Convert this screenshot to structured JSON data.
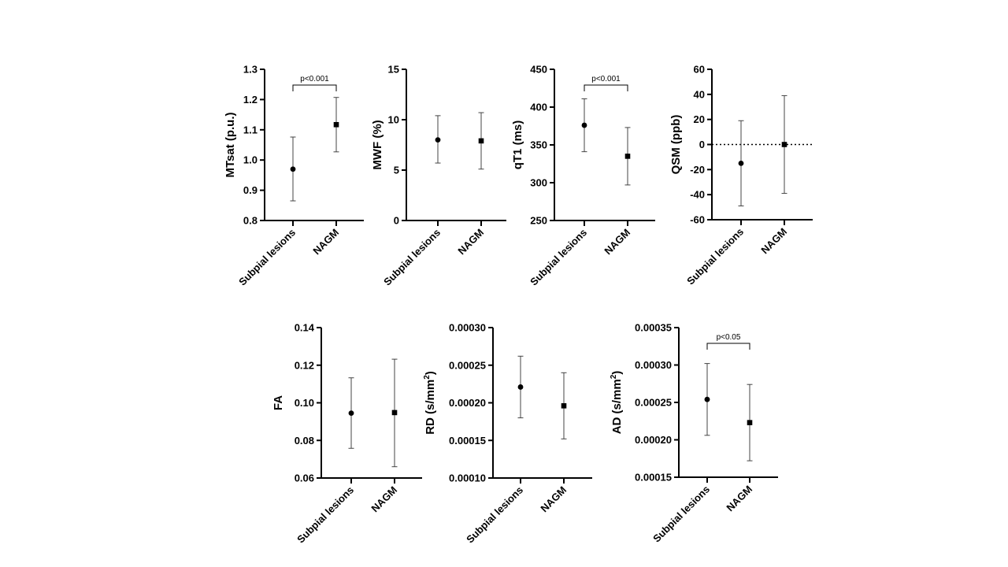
{
  "chart_data": [
    {
      "type": "scatter",
      "ylabel": "MTsat (p.u.)",
      "ylim": [
        0.8,
        1.3
      ],
      "yticks": [
        "0.8",
        "0.9",
        "1.0",
        "1.1",
        "1.2",
        "1.3"
      ],
      "categories": [
        "Subpial lesions",
        "NAGM"
      ],
      "means": [
        0.97,
        1.117
      ],
      "lower": [
        0.865,
        1.027
      ],
      "upper": [
        1.076,
        1.207
      ],
      "markers": [
        "circle",
        "square"
      ],
      "significance": "p<0.001"
    },
    {
      "type": "scatter",
      "ylabel": "MWF (%)",
      "ylim": [
        0,
        15
      ],
      "yticks": [
        "0",
        "5",
        "10",
        "15"
      ],
      "categories": [
        "Subpial lesions",
        "NAGM"
      ],
      "means": [
        8.0,
        7.9
      ],
      "lower": [
        5.7,
        5.1
      ],
      "upper": [
        10.4,
        10.7
      ],
      "markers": [
        "circle",
        "square"
      ],
      "significance": ""
    },
    {
      "type": "scatter",
      "ylabel": "qT1 (ms)",
      "ylim": [
        250,
        450
      ],
      "yticks": [
        "250",
        "300",
        "350",
        "400",
        "450"
      ],
      "categories": [
        "Subpial lesions",
        "NAGM"
      ],
      "means": [
        376,
        335
      ],
      "lower": [
        341,
        297
      ],
      "upper": [
        411,
        373
      ],
      "markers": [
        "circle",
        "square"
      ],
      "significance": "p<0.001"
    },
    {
      "type": "scatter",
      "ylabel": "QSM (ppb)",
      "ylim": [
        -60,
        60
      ],
      "yticks": [
        "-60",
        "-40",
        "-20",
        "0",
        "20",
        "40",
        "60"
      ],
      "categories": [
        "Subpial lesions",
        "NAGM"
      ],
      "means": [
        -15,
        0
      ],
      "lower": [
        -49,
        -39
      ],
      "upper": [
        19,
        39
      ],
      "markers": [
        "circle",
        "square"
      ],
      "significance": "",
      "reference_line": 0
    },
    {
      "type": "scatter",
      "ylabel": "FA",
      "ylim": [
        0.06,
        0.14
      ],
      "yticks": [
        "0.06",
        "0.08",
        "0.10",
        "0.12",
        "0.14"
      ],
      "categories": [
        "Subpial lesions",
        "NAGM"
      ],
      "means": [
        0.0945,
        0.0948
      ],
      "lower": [
        0.0758,
        0.066
      ],
      "upper": [
        0.1133,
        0.1232
      ],
      "markers": [
        "circle",
        "square"
      ],
      "significance": ""
    },
    {
      "type": "scatter",
      "ylabel": "RD (s/mm",
      "ylabel_sup": "2",
      "ylabel_end": ")",
      "ylim": [
        0.0001,
        0.0003
      ],
      "yticks": [
        "0.00010",
        "0.00015",
        "0.00020",
        "0.00025",
        "0.00030"
      ],
      "categories": [
        "Subpial lesions",
        "NAGM"
      ],
      "means": [
        0.000221,
        0.000196
      ],
      "lower": [
        0.00018,
        0.000152
      ],
      "upper": [
        0.000262,
        0.00024
      ],
      "markers": [
        "circle",
        "square"
      ],
      "significance": ""
    },
    {
      "type": "scatter",
      "ylabel": "AD (s/mm",
      "ylabel_sup": "2",
      "ylabel_end": ")",
      "ylim": [
        0.00015,
        0.00035
      ],
      "yticks": [
        "0.00015",
        "0.00020",
        "0.00025",
        "0.00030",
        "0.00035"
      ],
      "categories": [
        "Subpial lesions",
        "NAGM"
      ],
      "means": [
        0.000254,
        0.000223
      ],
      "lower": [
        0.000206,
        0.000172
      ],
      "upper": [
        0.000302,
        0.000274
      ],
      "markers": [
        "circle",
        "square"
      ],
      "significance": "p<0.05"
    }
  ]
}
